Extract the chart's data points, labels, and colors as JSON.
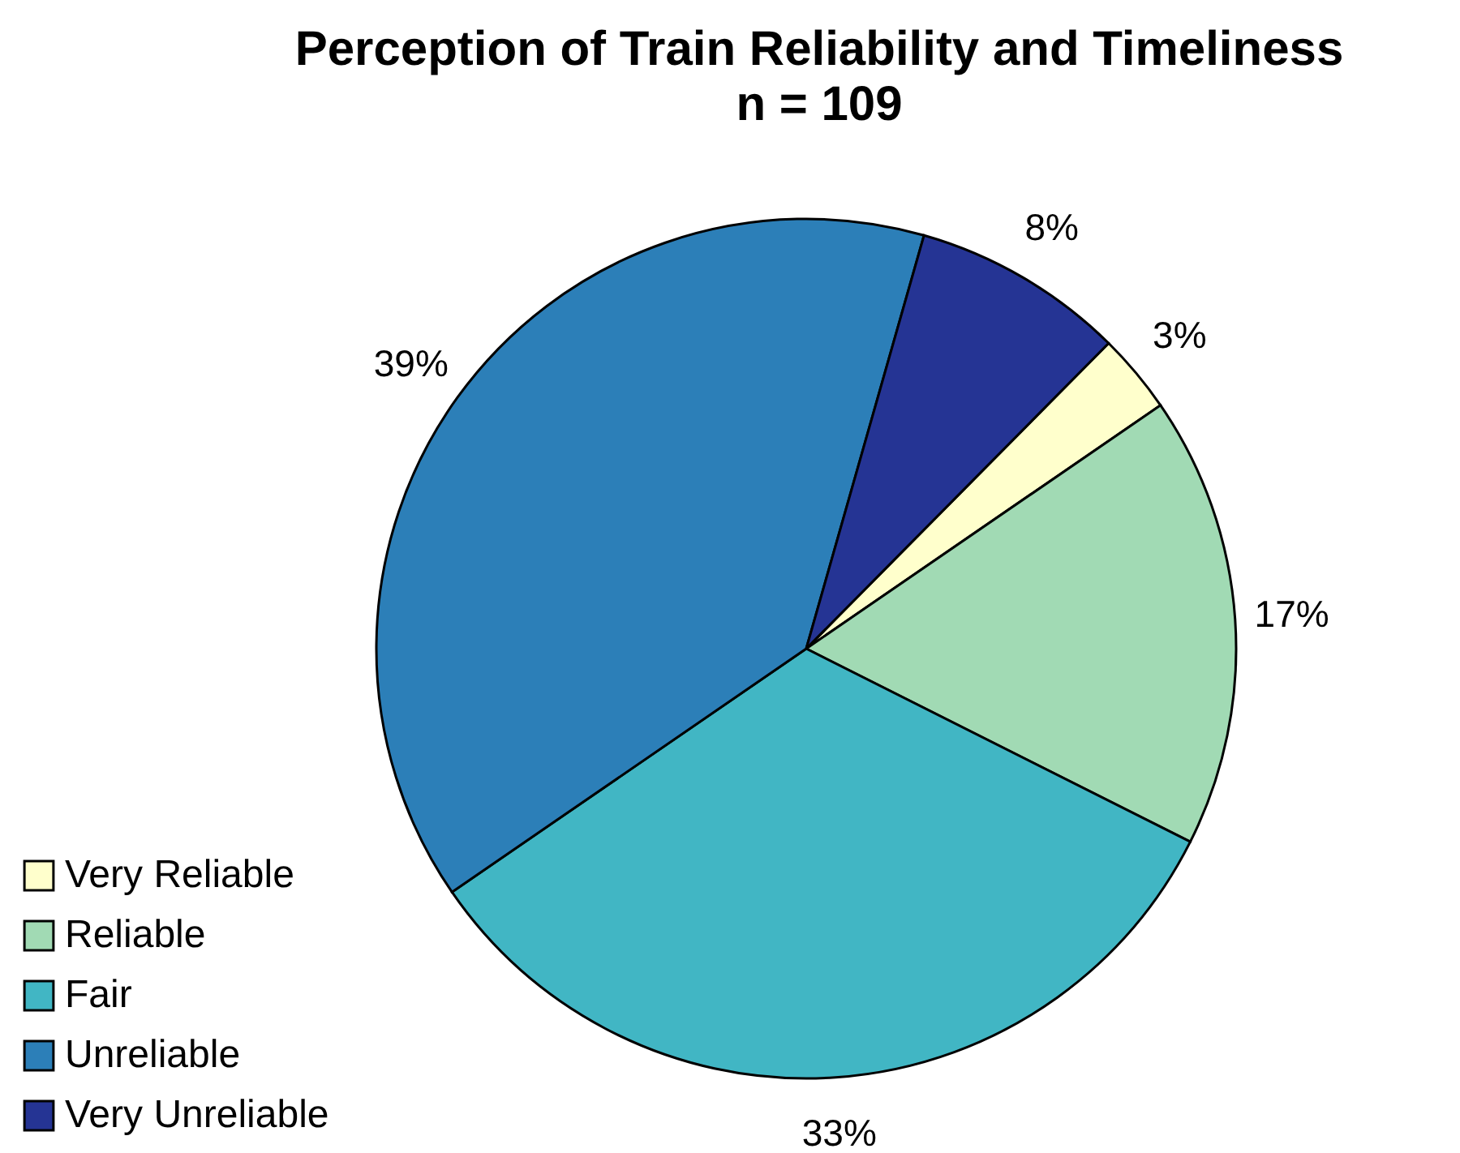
{
  "chart_data": {
    "type": "pie",
    "title": "Perception of Train Reliability and Timeliness",
    "subtitle": "n = 109",
    "categories": [
      "Very Reliable",
      "Reliable",
      "Fair",
      "Unreliable",
      "Very Unreliable"
    ],
    "values": [
      3,
      17,
      33,
      39,
      8
    ],
    "colors": [
      "#ffffcc",
      "#a1dab4",
      "#41b6c4",
      "#2c7fb8",
      "#253494"
    ],
    "value_labels": [
      "3%",
      "17%",
      "33%",
      "39%",
      "8%"
    ],
    "legend": "bottom left"
  }
}
